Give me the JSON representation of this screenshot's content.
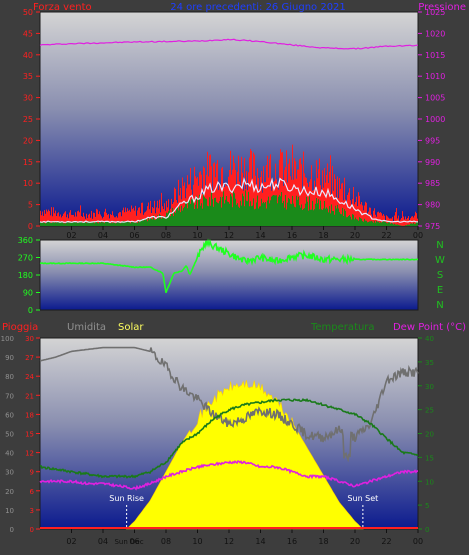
{
  "chart_data": [
    {
      "type": "line",
      "title": "24 ore precedenti: 26 Giugno 2021",
      "left_label": "Forza vento",
      "right_label": "Pressione",
      "x_ticks": [
        "02",
        "04",
        "06",
        "08",
        "10",
        "12",
        "14",
        "16",
        "18",
        "20",
        "22",
        "00"
      ],
      "y_left_ticks": [
        "0",
        "5",
        "10",
        "15",
        "20",
        "25",
        "30",
        "35",
        "40",
        "45",
        "50"
      ],
      "y_right_ticks": [
        "975",
        "980",
        "985",
        "990",
        "995",
        "1000",
        "1005",
        "1010",
        "1015",
        "1020",
        "1025"
      ],
      "y_left_range": [
        0,
        50
      ],
      "y_right_range": [
        975,
        1025
      ],
      "colors": {
        "gust": "#ff2020",
        "speed": "#1a8a1a",
        "avg": "#e8e8ff",
        "pressure": "#e020e0",
        "title": "#1f3fff"
      },
      "series": [
        {
          "key": "pressure",
          "x": [
            0,
            2,
            4,
            6,
            8,
            10,
            12,
            14,
            16,
            18,
            20,
            22,
            24
          ],
          "values": [
            1017.3,
            1017.6,
            1017.8,
            1018.0,
            1018.1,
            1018.2,
            1018.6,
            1018.1,
            1017.3,
            1016.6,
            1016.4,
            1017.0,
            1017.2
          ]
        },
        {
          "key": "gust",
          "x": [
            0,
            2,
            4,
            6,
            7,
            8,
            9,
            10,
            11,
            12,
            13,
            14,
            15,
            16,
            17,
            18,
            19,
            20,
            21,
            22,
            23,
            24
          ],
          "values": [
            4,
            3,
            3,
            4,
            5,
            5,
            10,
            13,
            15,
            15,
            15,
            14,
            15,
            14,
            14,
            13,
            10,
            7,
            4,
            2,
            2,
            3
          ]
        },
        {
          "key": "avg",
          "x": [
            0,
            2,
            4,
            6,
            7,
            8,
            9,
            10,
            11,
            12,
            13,
            14,
            15,
            16,
            17,
            18,
            19,
            20,
            21,
            22,
            23,
            24
          ],
          "values": [
            1,
            1,
            1,
            1,
            2,
            2,
            5,
            7,
            9,
            9,
            10,
            9,
            10,
            9,
            8,
            8,
            6,
            4,
            2,
            1,
            1,
            1
          ]
        },
        {
          "key": "speed",
          "x": [
            0,
            2,
            4,
            6,
            7,
            8,
            9,
            10,
            11,
            12,
            13,
            14,
            15,
            16,
            17,
            18,
            19,
            20,
            21,
            22,
            23,
            24
          ],
          "values": [
            1,
            1,
            1,
            1,
            2,
            3,
            5,
            6,
            7,
            7,
            7,
            6,
            7,
            6,
            6,
            5,
            4,
            2,
            1,
            1,
            0,
            1
          ]
        }
      ]
    },
    {
      "type": "scatter",
      "title": "Direzione vento",
      "x_ticks": [
        "02",
        "04",
        "06",
        "08",
        "10",
        "12",
        "14",
        "16",
        "18",
        "20",
        "22",
        "00"
      ],
      "y_ticks": [
        "0",
        "90",
        "180",
        "270",
        "360"
      ],
      "y_range": [
        0,
        360
      ],
      "compass_labels": [
        "N",
        "W",
        "S",
        "E",
        "N"
      ],
      "colors": {
        "direction": "#20ff20"
      },
      "series": [
        {
          "key": "direction",
          "x": [
            0,
            2,
            4,
            6,
            7,
            7.8,
            8,
            8.5,
            9,
            9.3,
            9.5,
            10,
            10.5,
            11,
            12,
            13,
            14,
            15,
            16,
            17,
            18,
            19,
            20,
            22,
            24
          ],
          "values": [
            240,
            240,
            240,
            220,
            220,
            190,
            90,
            190,
            200,
            230,
            180,
            270,
            345,
            330,
            290,
            250,
            270,
            250,
            275,
            280,
            260,
            260,
            260,
            260,
            260
          ]
        }
      ]
    },
    {
      "type": "line",
      "left_labels": [
        "Pioggia",
        "Umidita",
        "Solar"
      ],
      "right_labels": [
        "Temperatura",
        "Dew Point (°C)"
      ],
      "x_ticks": [
        "02",
        "04",
        "06",
        "08",
        "10",
        "12",
        "14",
        "16",
        "18",
        "20",
        "22",
        "00"
      ],
      "y_hum_ticks": [
        "0",
        "10",
        "20",
        "30",
        "40",
        "50",
        "60",
        "70",
        "80",
        "90",
        "100"
      ],
      "y_rain_ticks": [
        "0",
        "3",
        "6",
        "9",
        "12",
        "15",
        "18",
        "21",
        "24",
        "27",
        "30"
      ],
      "y_temp_ticks": [
        "0",
        "5",
        "10",
        "15",
        "20",
        "25",
        "30",
        "35",
        "40"
      ],
      "y_hum_range": [
        0,
        100
      ],
      "y_temp_range": [
        0,
        40
      ],
      "colors": {
        "humidity": "#707070",
        "temperature": "#1a7a1a",
        "dewpoint": "#e020e0",
        "solar": "#ffff00",
        "rain": "#ff2020",
        "sun_marker": "#ffffff"
      },
      "sun_rise": "Sun Rise",
      "sun_set": "Sun Set",
      "x_overlay_label": "Sun Dec",
      "sun_rise_x": 5.5,
      "sun_set_x": 20.5,
      "series": [
        {
          "key": "humidity",
          "x": [
            0,
            1,
            2,
            3,
            4,
            5,
            6,
            7,
            8,
            9,
            10,
            11,
            12,
            13,
            14,
            15,
            16,
            17,
            18,
            19,
            20,
            21,
            22,
            23,
            24
          ],
          "values": [
            88,
            90,
            93,
            94,
            95,
            95,
            95,
            93,
            85,
            74,
            68,
            60,
            55,
            58,
            62,
            60,
            55,
            49,
            48,
            52,
            48,
            55,
            78,
            82,
            82
          ]
        },
        {
          "key": "temperature",
          "x": [
            0,
            1,
            2,
            3,
            4,
            5,
            6,
            7,
            8,
            9,
            10,
            11,
            12,
            13,
            14,
            15,
            16,
            17,
            18,
            19,
            20,
            21,
            22,
            23,
            24
          ],
          "values": [
            13,
            12.5,
            12,
            11.5,
            11,
            11,
            11,
            12,
            14,
            18,
            20,
            23,
            25,
            26,
            26.5,
            27,
            27,
            27,
            26,
            25,
            24,
            22,
            19,
            16,
            15.5
          ]
        },
        {
          "key": "dewpoint",
          "x": [
            0,
            1,
            2,
            3,
            4,
            5,
            6,
            7,
            8,
            9,
            10,
            11,
            12,
            13,
            14,
            15,
            16,
            17,
            18,
            19,
            20,
            21,
            22,
            23,
            24
          ],
          "values": [
            10,
            10,
            10,
            9.5,
            9.5,
            9,
            8.5,
            9.5,
            11,
            12,
            13,
            13.5,
            14,
            14,
            13,
            13,
            12,
            11,
            11,
            10,
            9,
            10,
            11,
            12,
            12
          ]
        },
        {
          "key": "solar",
          "x": [
            5.5,
            6,
            7,
            8,
            9,
            10,
            11,
            12,
            13,
            14,
            15,
            16,
            17,
            18,
            19,
            20,
            20.5
          ],
          "values": [
            0,
            4,
            15,
            30,
            45,
            58,
            68,
            74,
            76,
            74,
            67,
            56,
            42,
            28,
            14,
            4,
            0
          ]
        },
        {
          "key": "rain",
          "x": [
            0,
            24
          ],
          "values": [
            0,
            0
          ]
        }
      ]
    }
  ]
}
